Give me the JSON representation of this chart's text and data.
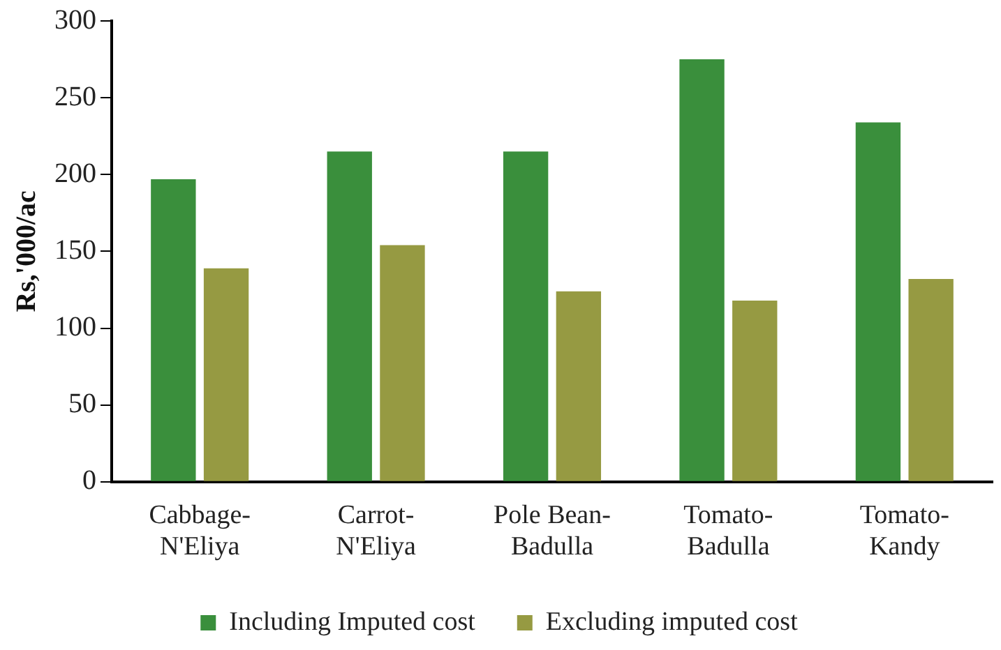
{
  "chart_data": {
    "type": "bar",
    "ylabel": "Rs,'000/ac",
    "categories": [
      "Cabbage-\nN'Eliya",
      "Carrot-\nN'Eliya",
      "Pole Bean-\nBadulla",
      "Tomato-\nBadulla",
      "Tomato-\nKandy"
    ],
    "series": [
      {
        "name": "Including Imputed cost",
        "color": "#3a8f3c",
        "values": [
          197,
          215,
          215,
          275,
          234
        ]
      },
      {
        "name": "Excluding imputed cost",
        "color": "#969a42",
        "values": [
          139,
          154,
          124,
          118,
          132
        ]
      }
    ],
    "ylim": [
      0,
      300
    ],
    "yticks": [
      0,
      50,
      100,
      150,
      200,
      250,
      300
    ],
    "grid": false,
    "legend": "bottom"
  }
}
